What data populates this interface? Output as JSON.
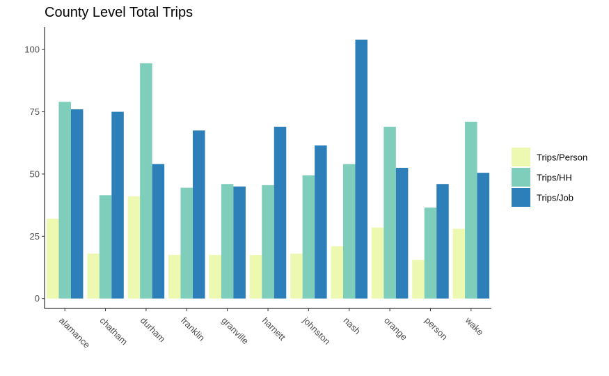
{
  "chart_data": {
    "type": "bar",
    "title": "County Level Total Trips",
    "xlabel": "",
    "ylabel": "",
    "categories": [
      "alamance",
      "chatham",
      "durham",
      "franklin",
      "granville",
      "harnett",
      "johnston",
      "nash",
      "orange",
      "person",
      "wake"
    ],
    "series": [
      {
        "name": "Trips/Person",
        "color": "#edf8b1",
        "values": [
          32,
          18,
          41,
          17.5,
          17.5,
          17.5,
          18,
          21,
          28.5,
          15.5,
          28
        ]
      },
      {
        "name": "Trips/HH",
        "color": "#7fcdbb",
        "values": [
          79,
          41.5,
          94.5,
          44.5,
          46,
          45.5,
          49.5,
          54,
          69,
          36.5,
          71
        ]
      },
      {
        "name": "Trips/Job",
        "color": "#2c7fb8",
        "values": [
          76,
          75,
          54,
          67.5,
          45,
          69,
          61.5,
          104,
          52.5,
          46,
          50.5
        ]
      }
    ],
    "yticks": [
      0,
      25,
      50,
      75,
      100
    ],
    "ylim": [
      -4,
      109
    ],
    "grid": false,
    "legend_position": "right"
  }
}
